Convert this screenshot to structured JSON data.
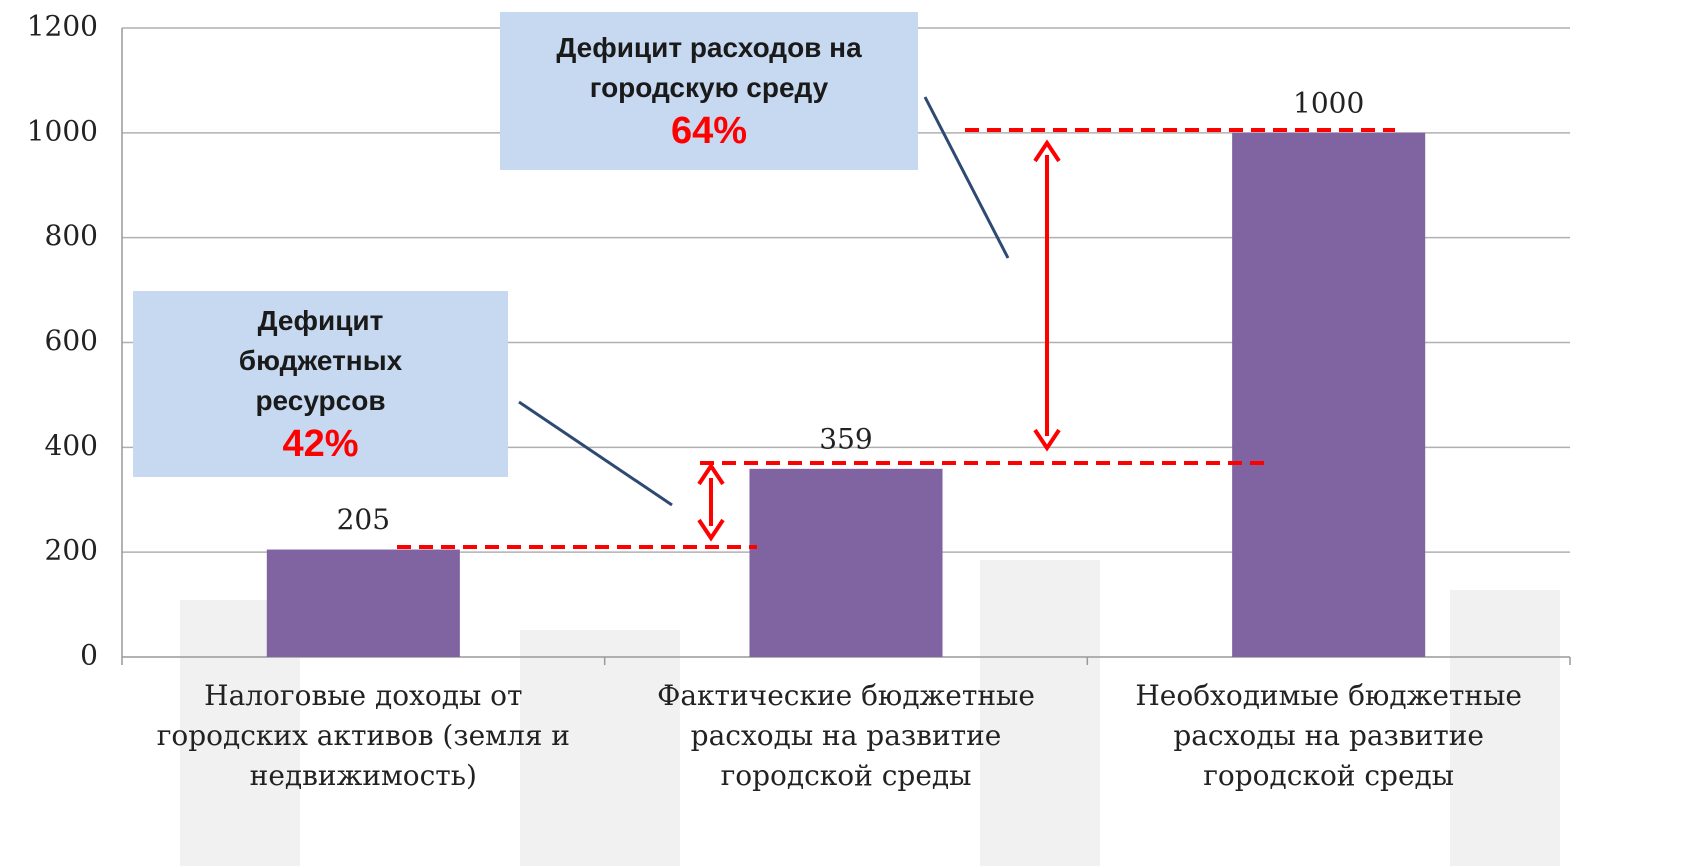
{
  "chart_data": {
    "type": "bar",
    "categories": [
      "Налоговые доходы от городских активов (земля и недвижимость)",
      "Фактические бюджетные расходы на развитие городской среды",
      "Необходимые бюджетные расходы на развитие городской среды"
    ],
    "values": [
      205,
      359,
      1000
    ],
    "color": "#8064a2",
    "ylim": [
      0,
      1200
    ],
    "yticks": [
      0,
      200,
      400,
      600,
      800,
      1000,
      1200
    ],
    "grid": true,
    "annotations": [
      {
        "text": "Дефицит расходов на городскую среду",
        "label": "64%"
      },
      {
        "text": "Дефицит бюджетных ресурсов",
        "label": "42%"
      }
    ]
  }
}
